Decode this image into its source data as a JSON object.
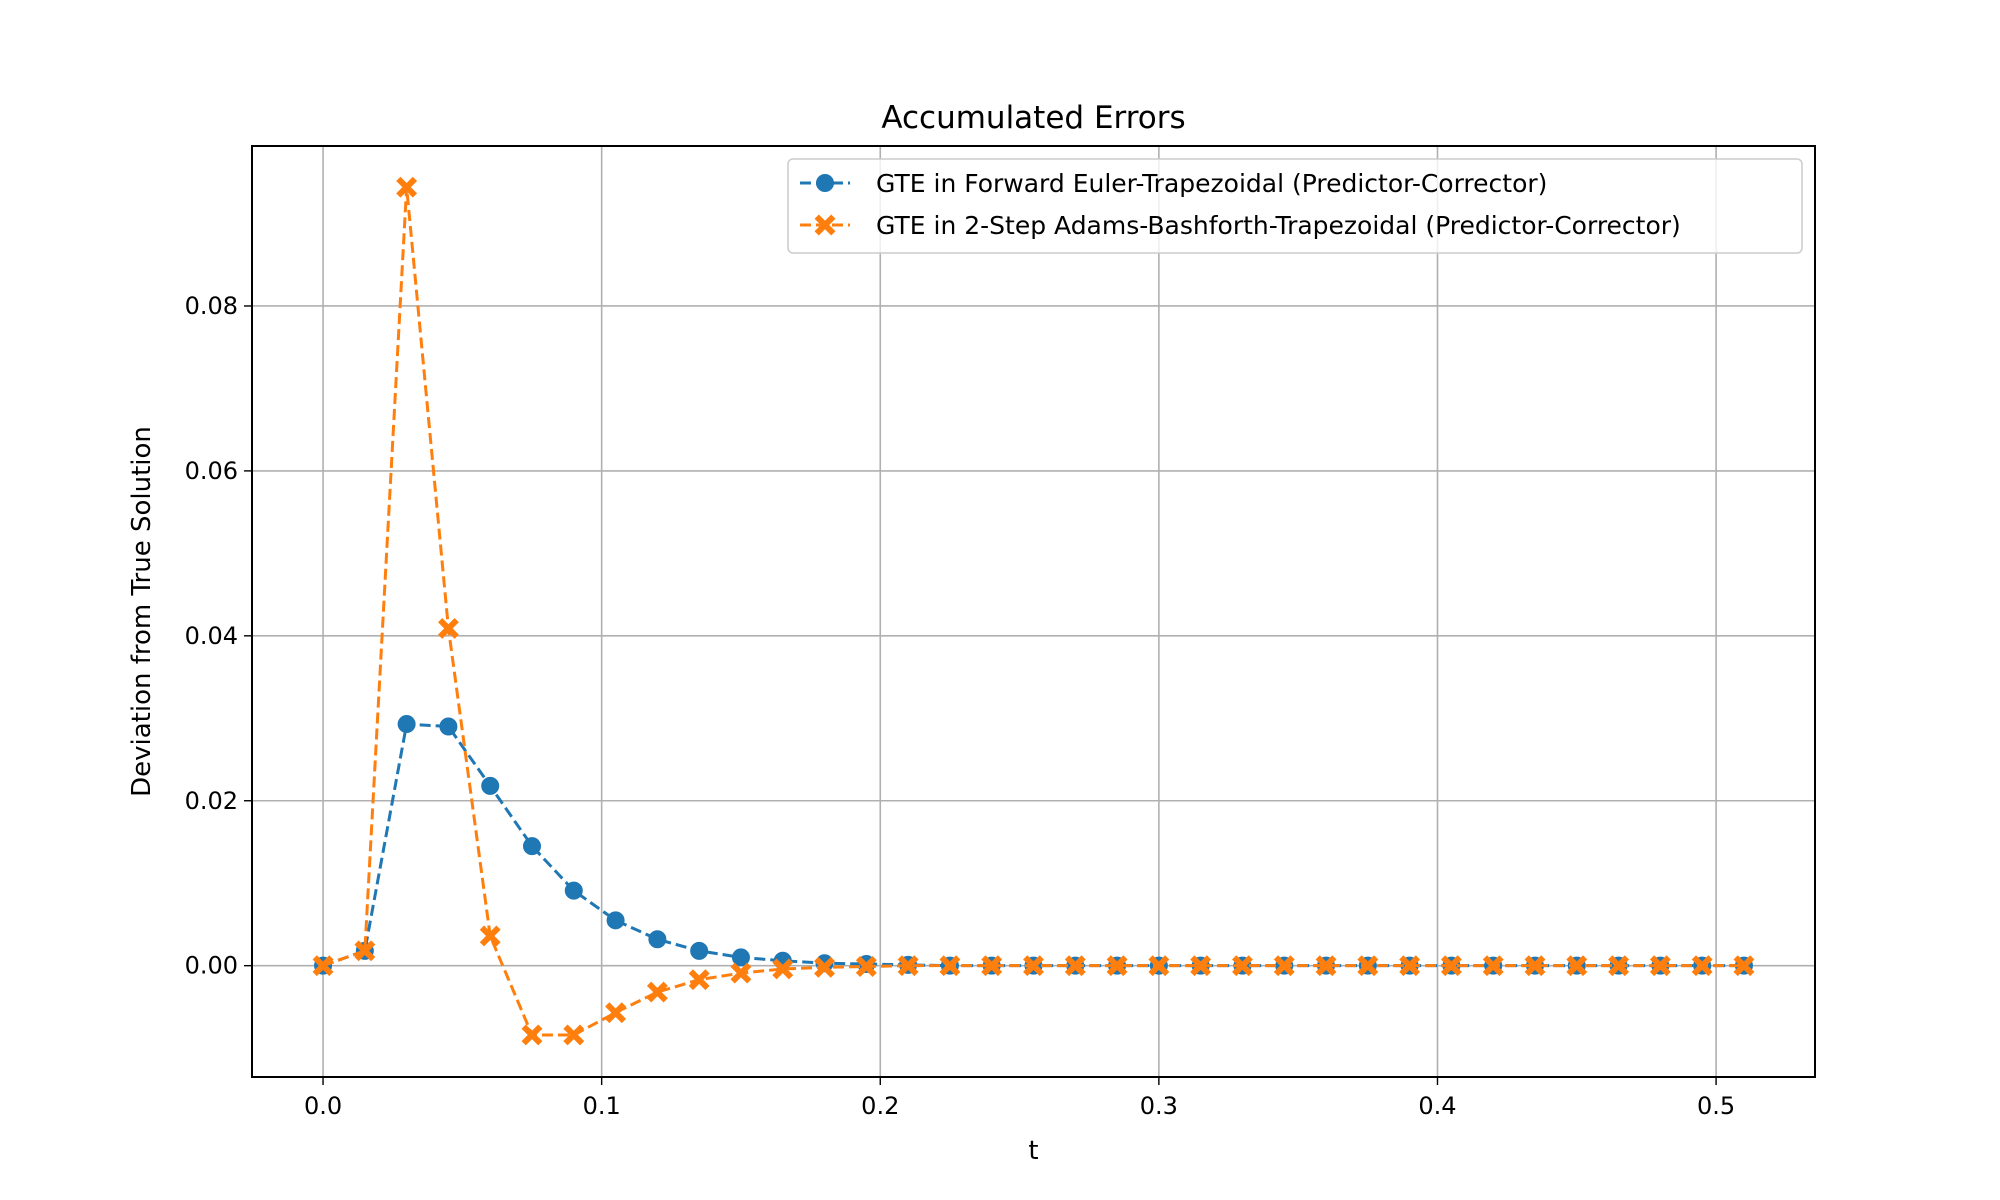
{
  "chart_data": {
    "type": "line",
    "title": "Accumulated Errors",
    "xlabel": "t",
    "ylabel": "Deviation from True Solution",
    "xlim": [
      -0.0255,
      0.5355
    ],
    "ylim": [
      -0.0135,
      0.0994
    ],
    "xticks": [
      0.0,
      0.1,
      0.2,
      0.3,
      0.4,
      0.5
    ],
    "xtick_labels": [
      "0.0",
      "0.1",
      "0.2",
      "0.3",
      "0.4",
      "0.5"
    ],
    "yticks": [
      0.0,
      0.02,
      0.04,
      0.06,
      0.08
    ],
    "ytick_labels": [
      "0.00",
      "0.02",
      "0.04",
      "0.06",
      "0.08"
    ],
    "grid": true,
    "legend_position": "top-right",
    "x": [
      0.0,
      0.015,
      0.03,
      0.045,
      0.06,
      0.075,
      0.09,
      0.105,
      0.12,
      0.135,
      0.15,
      0.165,
      0.18,
      0.195,
      0.21,
      0.225,
      0.24,
      0.255,
      0.27,
      0.285,
      0.3,
      0.315,
      0.33,
      0.345,
      0.36,
      0.375,
      0.39,
      0.405,
      0.42,
      0.435,
      0.45,
      0.465,
      0.48,
      0.495,
      0.51
    ],
    "series": [
      {
        "name": "GTE in Forward Euler-Trapezoidal (Predictor-Corrector)",
        "color": "#1f77b4",
        "marker": "circle",
        "values": [
          0.0,
          0.0018,
          0.0293,
          0.029,
          0.0218,
          0.0145,
          0.0091,
          0.0055,
          0.0032,
          0.0018,
          0.001,
          0.0006,
          0.0003,
          0.0002,
          0.0001,
          0.0,
          0.0,
          0.0,
          0.0,
          0.0,
          0.0,
          0.0,
          0.0,
          0.0,
          0.0,
          0.0,
          0.0,
          0.0,
          0.0,
          0.0,
          0.0,
          0.0,
          0.0,
          0.0,
          0.0
        ]
      },
      {
        "name": "GTE in 2-Step Adams-Bashforth-Trapezoidal (Predictor-Corrector)",
        "color": "#ff7f0e",
        "marker": "x-filled",
        "values": [
          0.0,
          0.0018,
          0.0944,
          0.0409,
          0.0036,
          -0.0084,
          -0.0084,
          -0.0057,
          -0.0032,
          -0.0017,
          -0.0009,
          -0.0004,
          -0.0002,
          -0.0001,
          0.0,
          0.0,
          0.0,
          0.0,
          0.0,
          0.0,
          0.0,
          0.0,
          0.0,
          0.0,
          0.0,
          0.0,
          0.0,
          0.0,
          0.0,
          0.0,
          0.0,
          0.0,
          0.0,
          0.0,
          0.0
        ]
      }
    ]
  }
}
